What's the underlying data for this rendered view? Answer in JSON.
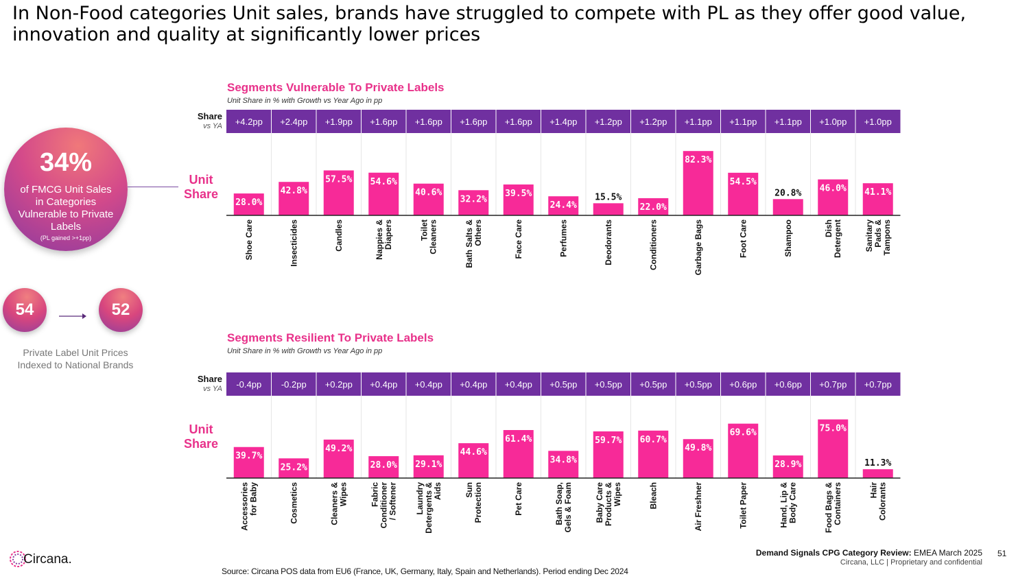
{
  "title": "In Non-Food categories Unit sales, brands have struggled to compete with PL as they offer good value, innovation and quality at significantly lower prices",
  "callout": {
    "percent": "34%",
    "text": "of FMCG Unit Sales in Categories Vulnerable to Private Labels",
    "note": "(PL gained >+1pp)"
  },
  "price_index": {
    "from": "54",
    "to": "52",
    "label": "Private Label Unit Prices Indexed to National Brands"
  },
  "labels": {
    "share": "Share",
    "vs_ya": "vs YA",
    "unit": "Unit",
    "share2": "Share"
  },
  "colors": {
    "bar": "#f72a98",
    "header": "#7030a0",
    "title": "#e8318a"
  },
  "chart_data": [
    {
      "type": "bar",
      "title": "Segments Vulnerable To Private Labels",
      "subtitle": "Unit Share in % with Growth vs Year Ago in pp",
      "categories": [
        "Shoe Care",
        "Insecticides",
        "Candles",
        "Nappies & Diapers",
        "Toilet Cleaners",
        "Bath Salts & Others",
        "Face Care",
        "Perfumes",
        "Deodorants",
        "Conditioners",
        "Garbage Bags",
        "Foot Care",
        "Shampoo",
        "Dish Detergent",
        "Sanitary Pads & Tampons"
      ],
      "values": [
        28.0,
        42.8,
        57.5,
        54.6,
        40.6,
        32.2,
        39.5,
        24.4,
        15.5,
        22.0,
        82.3,
        54.5,
        20.8,
        46.0,
        41.1
      ],
      "value_labels": [
        "28.0%",
        "42.8%",
        "57.5%",
        "54.6%",
        "40.6%",
        "32.2%",
        "39.5%",
        "24.4%",
        "15.5%",
        "22.0%",
        "82.3%",
        "54.5%",
        "20.8%",
        "46.0%",
        "41.1%"
      ],
      "growth": [
        "+4.2pp",
        "+2.4pp",
        "+1.9pp",
        "+1.6pp",
        "+1.6pp",
        "+1.6pp",
        "+1.6pp",
        "+1.4pp",
        "+1.2pp",
        "+1.2pp",
        "+1.1pp",
        "+1.1pp",
        "+1.1pp",
        "+1.0pp",
        "+1.0pp"
      ],
      "ylim": [
        0,
        100
      ]
    },
    {
      "type": "bar",
      "title": "Segments Resilient To Private Labels",
      "subtitle": "Unit Share in % with Growth vs Year Ago in pp",
      "categories": [
        "Accessories for Baby",
        "Cosmetics",
        "Cleaners & Wipes",
        "Fabric Conditioner / Softener",
        "Laundry Detergents & Aids",
        "Sun Protection",
        "Pet Care",
        "Bath Soap, Gels & Foam",
        "Baby Care Products & Wipes",
        "Bleach",
        "Air Freshner",
        "Toilet Paper",
        "Hand, Lip & Body Care",
        "Food Bags & Containers",
        "Hair Colorants"
      ],
      "values": [
        39.7,
        25.2,
        49.2,
        28.0,
        29.1,
        44.6,
        61.4,
        34.8,
        59.7,
        60.7,
        49.8,
        69.6,
        28.9,
        75.0,
        11.3
      ],
      "value_labels": [
        "39.7%",
        "25.2%",
        "49.2%",
        "28.0%",
        "29.1%",
        "44.6%",
        "61.4%",
        "34.8%",
        "59.7%",
        "60.7%",
        "49.8%",
        "69.6%",
        "28.9%",
        "75.0%",
        "11.3%"
      ],
      "growth": [
        "-0.4pp",
        "-0.2pp",
        "+0.2pp",
        "+0.4pp",
        "+0.4pp",
        "+0.4pp",
        "+0.4pp",
        "+0.5pp",
        "+0.5pp",
        "+0.5pp",
        "+0.5pp",
        "+0.6pp",
        "+0.6pp",
        "+0.7pp",
        "+0.7pp"
      ],
      "ylim": [
        0,
        100
      ]
    }
  ],
  "footer": {
    "logo": "Circana.",
    "source": "Source: Circana POS data from EU6 (France, UK, Germany, Italy, Spain and Netherlands). Period ending Dec 2024",
    "report_bold": "Demand Signals CPG Category Review:",
    "report_rest": "EMEA March 2025",
    "company": "Circana, LLC  |  Proprietary and confidential",
    "page": "51"
  }
}
